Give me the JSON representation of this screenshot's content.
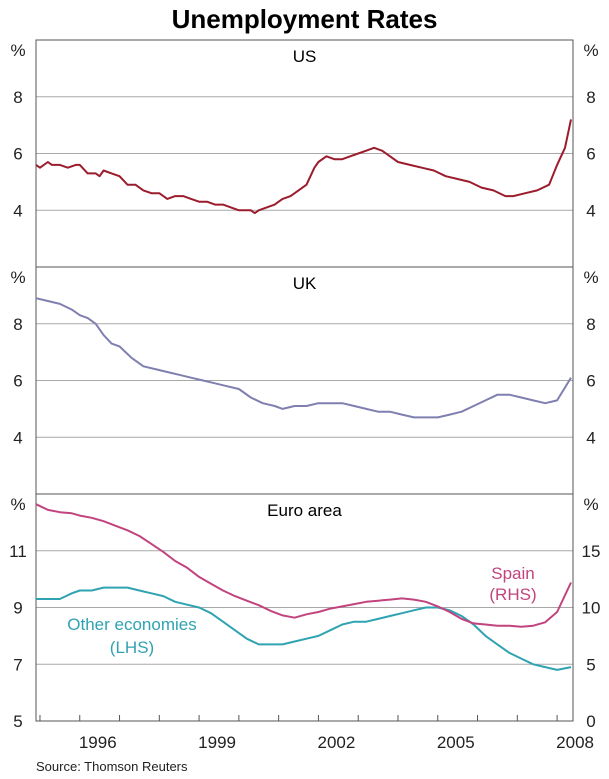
{
  "chart_data": {
    "type": "line",
    "title": "Unemployment Rates",
    "source": "Source: Thomson Reuters",
    "x_axis": {
      "tick_labels": [
        "1996",
        "1999",
        "2002",
        "2005",
        "2008"
      ],
      "tick_values": [
        1996.0,
        1999.0,
        2002.0,
        2005.0,
        2008.0
      ],
      "xlim": [
        1994.9,
        2008.4
      ],
      "minor_ticks_per_year": true
    },
    "panels": [
      {
        "id": "us",
        "title": "US",
        "left_unit": "%",
        "right_unit": "%",
        "ylim_left": [
          2,
          10
        ],
        "ylim_right": [
          2,
          10
        ],
        "left_ticks": [
          4,
          6,
          8
        ],
        "right_ticks": [
          4,
          6,
          8
        ],
        "left_tick_labels": [
          "4",
          "6",
          "8"
        ],
        "right_tick_labels": [
          "4",
          "6",
          "8"
        ],
        "gridlines": [
          4,
          6,
          8
        ],
        "series": [
          {
            "name": "US",
            "axis": "left",
            "color": "#9b1c2c",
            "x": [
              1994.9,
              1995.0,
              1995.2,
              1995.3,
              1995.5,
              1995.7,
              1995.9,
              1996.0,
              1996.2,
              1996.4,
              1996.5,
              1996.6,
              1996.8,
              1997.0,
              1997.2,
              1997.4,
              1997.6,
              1997.8,
              1998.0,
              1998.2,
              1998.4,
              1998.6,
              1998.8,
              1999.0,
              1999.2,
              1999.4,
              1999.6,
              1999.8,
              2000.0,
              2000.1,
              2000.3,
              2000.4,
              2000.5,
              2000.7,
              2000.9,
              2001.0,
              2001.1,
              2001.3,
              2001.5,
              2001.7,
              2001.9,
              2002.0,
              2002.2,
              2002.4,
              2002.6,
              2002.8,
              2003.0,
              2003.2,
              2003.4,
              2003.6,
              2003.8,
              2004.0,
              2004.3,
              2004.6,
              2004.9,
              2005.2,
              2005.5,
              2005.8,
              2006.1,
              2006.4,
              2006.7,
              2006.9,
              2007.2,
              2007.5,
              2007.8,
              2008.0,
              2008.2,
              2008.35
            ],
            "values": [
              5.6,
              5.5,
              5.7,
              5.6,
              5.6,
              5.5,
              5.6,
              5.6,
              5.3,
              5.3,
              5.2,
              5.4,
              5.3,
              5.2,
              4.9,
              4.9,
              4.7,
              4.6,
              4.6,
              4.4,
              4.5,
              4.5,
              4.4,
              4.3,
              4.3,
              4.2,
              4.2,
              4.1,
              4.0,
              4.0,
              4.0,
              3.9,
              4.0,
              4.1,
              4.2,
              4.3,
              4.4,
              4.5,
              4.7,
              4.9,
              5.5,
              5.7,
              5.9,
              5.8,
              5.8,
              5.9,
              6.0,
              6.1,
              6.2,
              6.1,
              5.9,
              5.7,
              5.6,
              5.5,
              5.4,
              5.2,
              5.1,
              5.0,
              4.8,
              4.7,
              4.5,
              4.5,
              4.6,
              4.7,
              4.9,
              5.6,
              6.2,
              7.2
            ]
          }
        ]
      },
      {
        "id": "uk",
        "title": "UK",
        "left_unit": "%",
        "right_unit": "%",
        "ylim_left": [
          2,
          10
        ],
        "ylim_right": [
          2,
          10
        ],
        "left_ticks": [
          4,
          6,
          8
        ],
        "right_ticks": [
          4,
          6,
          8
        ],
        "left_tick_labels": [
          "4",
          "6",
          "8"
        ],
        "right_tick_labels": [
          "4",
          "6",
          "8"
        ],
        "gridlines": [
          4,
          6,
          8
        ],
        "series": [
          {
            "name": "UK",
            "axis": "left",
            "color": "#7f7fb0",
            "x": [
              1994.9,
              1995.2,
              1995.5,
              1995.8,
              1996.0,
              1996.2,
              1996.4,
              1996.6,
              1996.8,
              1997.0,
              1997.3,
              1997.6,
              1997.9,
              1998.2,
              1998.5,
              1998.8,
              1999.1,
              1999.4,
              1999.7,
              2000.0,
              2000.3,
              2000.6,
              2000.9,
              2001.1,
              2001.4,
              2001.7,
              2002.0,
              2002.3,
              2002.6,
              2002.9,
              2003.2,
              2003.5,
              2003.8,
              2004.1,
              2004.4,
              2004.7,
              2005.0,
              2005.3,
              2005.6,
              2005.9,
              2006.2,
              2006.5,
              2006.8,
              2007.1,
              2007.4,
              2007.7,
              2008.0,
              2008.35
            ],
            "values": [
              8.9,
              8.8,
              8.7,
              8.5,
              8.3,
              8.2,
              8.0,
              7.6,
              7.3,
              7.2,
              6.8,
              6.5,
              6.4,
              6.3,
              6.2,
              6.1,
              6.0,
              5.9,
              5.8,
              5.7,
              5.4,
              5.2,
              5.1,
              5.0,
              5.1,
              5.1,
              5.2,
              5.2,
              5.2,
              5.1,
              5.0,
              4.9,
              4.9,
              4.8,
              4.7,
              4.7,
              4.7,
              4.8,
              4.9,
              5.1,
              5.3,
              5.5,
              5.5,
              5.4,
              5.3,
              5.2,
              5.3,
              6.1
            ]
          }
        ]
      },
      {
        "id": "euro-area",
        "title": "Euro area",
        "left_unit": "%",
        "right_unit": "%",
        "ylim_left": [
          5,
          13
        ],
        "ylim_right": [
          0,
          20
        ],
        "left_ticks": [
          5,
          7,
          9,
          11
        ],
        "right_ticks": [
          0,
          5,
          10,
          15
        ],
        "left_tick_labels": [
          "5",
          "7",
          "9",
          "11"
        ],
        "right_tick_labels": [
          "0",
          "5",
          "10",
          "15"
        ],
        "gridlines": [
          7,
          9,
          11
        ],
        "series": [
          {
            "name": "Other economies",
            "axis": "left",
            "label": "Other economies",
            "axis_note": "(LHS)",
            "color": "#2fa3b1",
            "x": [
              1994.9,
              1995.2,
              1995.5,
              1995.8,
              1996.0,
              1996.3,
              1996.6,
              1996.9,
              1997.2,
              1997.5,
              1997.8,
              1998.1,
              1998.4,
              1998.7,
              1999.0,
              1999.3,
              1999.6,
              1999.9,
              2000.2,
              2000.5,
              2000.8,
              2001.1,
              2001.4,
              2001.7,
              2002.0,
              2002.3,
              2002.6,
              2002.9,
              2003.2,
              2003.5,
              2003.8,
              2004.1,
              2004.4,
              2004.7,
              2005.0,
              2005.3,
              2005.6,
              2005.9,
              2006.2,
              2006.5,
              2006.8,
              2007.1,
              2007.4,
              2007.7,
              2008.0,
              2008.35
            ],
            "values": [
              9.3,
              9.3,
              9.3,
              9.5,
              9.6,
              9.6,
              9.7,
              9.7,
              9.7,
              9.6,
              9.5,
              9.4,
              9.2,
              9.1,
              9.0,
              8.8,
              8.5,
              8.2,
              7.9,
              7.7,
              7.7,
              7.7,
              7.8,
              7.9,
              8.0,
              8.2,
              8.4,
              8.5,
              8.5,
              8.6,
              8.7,
              8.8,
              8.9,
              9.0,
              9.0,
              8.9,
              8.7,
              8.4,
              8.0,
              7.7,
              7.4,
              7.2,
              7.0,
              6.9,
              6.8,
              6.9
            ]
          },
          {
            "name": "Spain",
            "axis": "right",
            "label": "Spain",
            "axis_note": "(RHS)",
            "color": "#c1447e",
            "x": [
              1994.9,
              1995.2,
              1995.5,
              1995.8,
              1996.0,
              1996.3,
              1996.6,
              1996.9,
              1997.2,
              1997.5,
              1997.8,
              1998.1,
              1998.4,
              1998.7,
              1999.0,
              1999.3,
              1999.6,
              1999.9,
              2000.2,
              2000.5,
              2000.8,
              2001.1,
              2001.4,
              2001.7,
              2002.0,
              2002.3,
              2002.6,
              2002.9,
              2003.2,
              2003.5,
              2003.8,
              2004.1,
              2004.4,
              2004.7,
              2005.0,
              2005.3,
              2005.6,
              2005.9,
              2006.2,
              2006.5,
              2006.8,
              2007.1,
              2007.4,
              2007.7,
              2008.0,
              2008.35
            ],
            "values": [
              19.1,
              18.6,
              18.4,
              18.3,
              18.1,
              17.9,
              17.6,
              17.2,
              16.8,
              16.3,
              15.6,
              14.9,
              14.1,
              13.5,
              12.7,
              12.1,
              11.5,
              11.0,
              10.6,
              10.2,
              9.7,
              9.3,
              9.1,
              9.4,
              9.6,
              9.9,
              10.1,
              10.3,
              10.5,
              10.6,
              10.7,
              10.8,
              10.7,
              10.5,
              10.1,
              9.6,
              9.0,
              8.6,
              8.5,
              8.4,
              8.4,
              8.3,
              8.4,
              8.7,
              9.6,
              12.2
            ]
          }
        ]
      }
    ]
  }
}
